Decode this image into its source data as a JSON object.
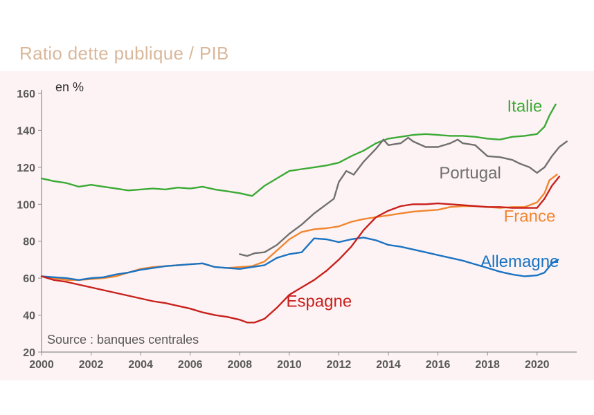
{
  "title": "Ratio dette publique / PIB",
  "chart_data": {
    "type": "line",
    "unit_label": "en %",
    "source": "Source : banques centrales",
    "xlim": [
      2000,
      2021.6
    ],
    "ylim": [
      20,
      160
    ],
    "x_ticks": [
      2000,
      2002,
      2004,
      2006,
      2008,
      2010,
      2012,
      2014,
      2016,
      2018,
      2020
    ],
    "y_ticks": [
      20,
      40,
      60,
      80,
      100,
      120,
      140,
      160
    ],
    "grid": false,
    "series": [
      {
        "name": "Italie",
        "color": "#3aaa35",
        "label_pos": [
          2019.5,
          150
        ],
        "points": [
          [
            2000,
            114
          ],
          [
            2000.5,
            112.5
          ],
          [
            2001,
            111.5
          ],
          [
            2001.5,
            109.5
          ],
          [
            2002,
            110.5
          ],
          [
            2002.5,
            109.5
          ],
          [
            2003,
            108.5
          ],
          [
            2003.5,
            107.5
          ],
          [
            2004,
            108
          ],
          [
            2004.5,
            108.5
          ],
          [
            2005,
            108
          ],
          [
            2005.5,
            109
          ],
          [
            2006,
            108.5
          ],
          [
            2006.5,
            109.5
          ],
          [
            2007,
            108
          ],
          [
            2007.5,
            107
          ],
          [
            2008,
            106
          ],
          [
            2008.5,
            104.5
          ],
          [
            2009,
            110
          ],
          [
            2009.5,
            114
          ],
          [
            2010,
            118
          ],
          [
            2010.5,
            119
          ],
          [
            2011,
            120
          ],
          [
            2011.5,
            121
          ],
          [
            2012,
            122.5
          ],
          [
            2012.5,
            126
          ],
          [
            2013,
            129
          ],
          [
            2013.5,
            133
          ],
          [
            2014,
            135.5
          ],
          [
            2014.5,
            136.5
          ],
          [
            2015,
            137.5
          ],
          [
            2015.5,
            138
          ],
          [
            2016,
            137.5
          ],
          [
            2016.5,
            137
          ],
          [
            2017,
            137
          ],
          [
            2017.5,
            136.5
          ],
          [
            2018,
            135.5
          ],
          [
            2018.5,
            135
          ],
          [
            2019,
            136.5
          ],
          [
            2019.5,
            137
          ],
          [
            2020,
            138
          ],
          [
            2020.3,
            142
          ],
          [
            2020.5,
            148
          ],
          [
            2020.75,
            154
          ]
        ]
      },
      {
        "name": "Portugal",
        "color": "#707070",
        "label_pos": [
          2017.3,
          114
        ],
        "points": [
          [
            2008,
            73
          ],
          [
            2008.3,
            72
          ],
          [
            2008.6,
            73.5
          ],
          [
            2009,
            74
          ],
          [
            2009.5,
            78
          ],
          [
            2010,
            84
          ],
          [
            2010.5,
            89
          ],
          [
            2011,
            95
          ],
          [
            2011.5,
            100
          ],
          [
            2011.8,
            103
          ],
          [
            2012,
            112
          ],
          [
            2012.3,
            118
          ],
          [
            2012.6,
            116
          ],
          [
            2013,
            123
          ],
          [
            2013.5,
            130
          ],
          [
            2013.8,
            135
          ],
          [
            2014,
            132
          ],
          [
            2014.5,
            133
          ],
          [
            2014.8,
            136
          ],
          [
            2015,
            134
          ],
          [
            2015.5,
            131
          ],
          [
            2016,
            131
          ],
          [
            2016.5,
            133
          ],
          [
            2016.8,
            135
          ],
          [
            2017,
            133
          ],
          [
            2017.5,
            132
          ],
          [
            2018,
            126
          ],
          [
            2018.5,
            125.5
          ],
          [
            2019,
            124
          ],
          [
            2019.3,
            122
          ],
          [
            2019.7,
            120
          ],
          [
            2020,
            117
          ],
          [
            2020.3,
            120
          ],
          [
            2020.6,
            126
          ],
          [
            2020.9,
            131
          ],
          [
            2021.2,
            134
          ]
        ]
      },
      {
        "name": "France",
        "color": "#f0862f",
        "label_pos": [
          2019.7,
          90.5
        ],
        "points": [
          [
            2000,
            61
          ],
          [
            2000.5,
            60
          ],
          [
            2001,
            59
          ],
          [
            2001.5,
            59
          ],
          [
            2002,
            59.5
          ],
          [
            2002.5,
            60
          ],
          [
            2003,
            61
          ],
          [
            2003.5,
            63
          ],
          [
            2004,
            65
          ],
          [
            2004.5,
            66
          ],
          [
            2005,
            66.5
          ],
          [
            2005.5,
            67
          ],
          [
            2006,
            67.5
          ],
          [
            2006.5,
            68
          ],
          [
            2007,
            66
          ],
          [
            2007.5,
            65.5
          ],
          [
            2008,
            66
          ],
          [
            2008.5,
            66.5
          ],
          [
            2009,
            69
          ],
          [
            2009.5,
            75
          ],
          [
            2010,
            81
          ],
          [
            2010.5,
            85
          ],
          [
            2011,
            86.5
          ],
          [
            2011.5,
            87
          ],
          [
            2012,
            88
          ],
          [
            2012.5,
            90.5
          ],
          [
            2013,
            92
          ],
          [
            2013.5,
            93
          ],
          [
            2014,
            94
          ],
          [
            2014.5,
            95
          ],
          [
            2015,
            96
          ],
          [
            2015.5,
            96.5
          ],
          [
            2016,
            97
          ],
          [
            2016.5,
            98.5
          ],
          [
            2017,
            99
          ],
          [
            2017.5,
            99
          ],
          [
            2018,
            98.5
          ],
          [
            2018.5,
            98
          ],
          [
            2019,
            98.5
          ],
          [
            2019.5,
            98.5
          ],
          [
            2020,
            101
          ],
          [
            2020.3,
            106
          ],
          [
            2020.5,
            113
          ],
          [
            2020.8,
            116
          ]
        ]
      },
      {
        "name": "Allemagne",
        "color": "#1a73c2",
        "label_pos": [
          2019.3,
          66
        ],
        "points": [
          [
            2000,
            61
          ],
          [
            2000.5,
            60.5
          ],
          [
            2001,
            60
          ],
          [
            2001.5,
            59
          ],
          [
            2002,
            60
          ],
          [
            2002.5,
            60.5
          ],
          [
            2003,
            62
          ],
          [
            2003.5,
            63
          ],
          [
            2004,
            64.5
          ],
          [
            2004.5,
            65.5
          ],
          [
            2005,
            66.5
          ],
          [
            2005.5,
            67
          ],
          [
            2006,
            67.5
          ],
          [
            2006.5,
            68
          ],
          [
            2007,
            66
          ],
          [
            2007.5,
            65.5
          ],
          [
            2008,
            65
          ],
          [
            2008.5,
            66
          ],
          [
            2009,
            67
          ],
          [
            2009.5,
            71
          ],
          [
            2010,
            73
          ],
          [
            2010.5,
            74
          ],
          [
            2011,
            81.5
          ],
          [
            2011.5,
            81
          ],
          [
            2012,
            79.5
          ],
          [
            2012.5,
            81
          ],
          [
            2013,
            82
          ],
          [
            2013.5,
            80.5
          ],
          [
            2014,
            78
          ],
          [
            2014.5,
            77
          ],
          [
            2015,
            75.5
          ],
          [
            2015.5,
            74
          ],
          [
            2016,
            72.5
          ],
          [
            2016.5,
            71
          ],
          [
            2017,
            69.5
          ],
          [
            2017.5,
            67.5
          ],
          [
            2018,
            65.5
          ],
          [
            2018.5,
            63.5
          ],
          [
            2019,
            62
          ],
          [
            2019.5,
            61
          ],
          [
            2020,
            61.5
          ],
          [
            2020.3,
            63
          ],
          [
            2020.6,
            68
          ],
          [
            2020.85,
            70
          ]
        ]
      },
      {
        "name": "Espagne",
        "color": "#c8201c",
        "label_pos": [
          2011.2,
          44.5
        ],
        "points": [
          [
            2000,
            61
          ],
          [
            2000.5,
            59
          ],
          [
            2001,
            58
          ],
          [
            2001.5,
            56.5
          ],
          [
            2002,
            55
          ],
          [
            2002.5,
            53.5
          ],
          [
            2003,
            52
          ],
          [
            2003.5,
            50.5
          ],
          [
            2004,
            49
          ],
          [
            2004.5,
            47.5
          ],
          [
            2005,
            46.5
          ],
          [
            2005.5,
            45
          ],
          [
            2006,
            43.5
          ],
          [
            2006.5,
            41.5
          ],
          [
            2007,
            40
          ],
          [
            2007.5,
            39
          ],
          [
            2008,
            37.5
          ],
          [
            2008.3,
            36
          ],
          [
            2008.6,
            36
          ],
          [
            2009,
            38
          ],
          [
            2009.5,
            44
          ],
          [
            2010,
            51
          ],
          [
            2010.5,
            55
          ],
          [
            2011,
            59
          ],
          [
            2011.5,
            64
          ],
          [
            2012,
            70
          ],
          [
            2012.5,
            77
          ],
          [
            2013,
            86
          ],
          [
            2013.5,
            93
          ],
          [
            2014,
            96.5
          ],
          [
            2014.5,
            99
          ],
          [
            2015,
            100
          ],
          [
            2015.5,
            100
          ],
          [
            2016,
            100.5
          ],
          [
            2016.5,
            100
          ],
          [
            2017,
            99.5
          ],
          [
            2017.5,
            99
          ],
          [
            2018,
            98.5
          ],
          [
            2018.5,
            98.5
          ],
          [
            2019,
            98
          ],
          [
            2019.5,
            98
          ],
          [
            2020,
            98
          ],
          [
            2020.3,
            103
          ],
          [
            2020.6,
            110
          ],
          [
            2020.9,
            115
          ]
        ]
      }
    ]
  }
}
